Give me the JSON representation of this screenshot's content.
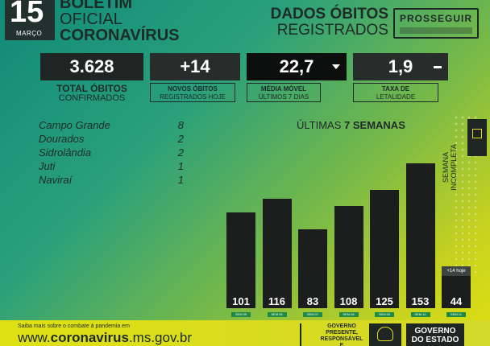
{
  "header": {
    "day": "15",
    "month": "MARÇO",
    "bulletin_line1": "BOLETIM",
    "bulletin_line2": "OFICIAL",
    "bulletin_line3": "CORONAVÍRUS",
    "dados_line1": "DADOS ÓBITOS",
    "dados_line2": "REGISTRADOS",
    "logo_text": "PROSSEGUIR"
  },
  "stats": {
    "total": {
      "value": "3.628",
      "title": "TOTAL ÓBITOS",
      "subtitle": "CONFIRMADOS"
    },
    "novos": {
      "value": "+14",
      "title": "NOVOS ÓBITOS",
      "subtitle": "REGISTRADOS HOJE"
    },
    "media": {
      "value": "22,7",
      "title": "MÉDIA MÓVEL",
      "subtitle": "ÚLTIMOS 7 DIAS",
      "trend": "down"
    },
    "taxa": {
      "value": "1,9",
      "title": "TAXA DE",
      "subtitle": "LETALIDADE",
      "trend": "flat"
    }
  },
  "cities": [
    {
      "name": "Campo Grande",
      "value": "8"
    },
    {
      "name": "Dourados",
      "value": "2"
    },
    {
      "name": "Sidrolândia",
      "value": "2"
    },
    {
      "name": "Juti",
      "value": "1"
    },
    {
      "name": "Naviraí",
      "value": "1"
    }
  ],
  "chart_data": {
    "type": "bar",
    "title_prefix": "ÚLTIMAS",
    "title_bold": "7 SEMANAS",
    "categories": [
      "SEM 05",
      "SEM 06",
      "SEM 07",
      "SEM 08",
      "SEM 09",
      "SEM 10",
      "SEM 11"
    ],
    "values": [
      101,
      116,
      83,
      108,
      125,
      153,
      44
    ],
    "last_note": "+14 hoje",
    "incomplete_label_line1": "SEMANA",
    "incomplete_label_line2": "INCOMPLETA",
    "bar_color": "#1b1e1d",
    "label_color": "#1f8a46"
  },
  "footer": {
    "small_text": "Saiba mais sobre o combate à pandemia em",
    "url_prefix": "www.",
    "url_bold": "coronavirus",
    "url_suffix": ".ms.gov.br",
    "gov_text_line1": "GOVERNO",
    "gov_text_line2": "PRESENTE,",
    "gov_text_line3": "RESPONSÁVEL E",
    "gov_box_line1": "GOVERNO",
    "gov_box_line2": "DO ESTADO"
  }
}
